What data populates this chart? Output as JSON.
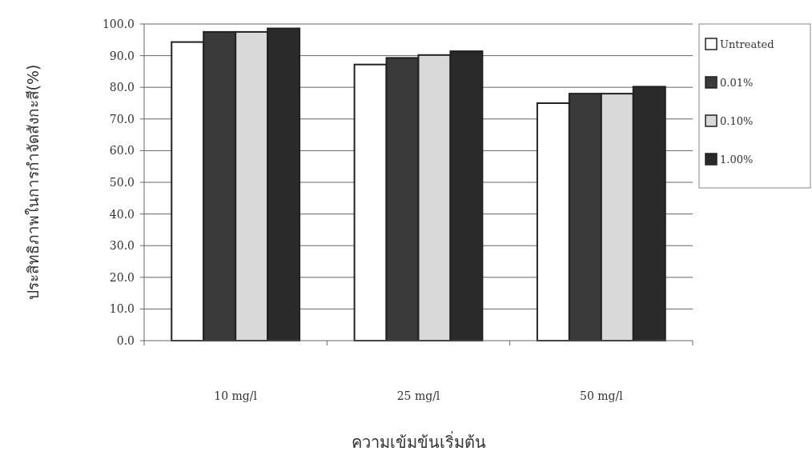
{
  "chart_data": {
    "type": "bar",
    "xlabel": "ความเข้มข้นเริ่มต้น",
    "ylabel": "ประสิทธิภาพในการกำจัดสังกะสี(%)",
    "categories": [
      "10 mg/l",
      "25 mg/l",
      "50 mg/l"
    ],
    "series": [
      {
        "name": "Untreated",
        "color": "#ffffff",
        "values": [
          94.3,
          87.2,
          75.0
        ]
      },
      {
        "name": "0.01%",
        "color": "#3a3a3a",
        "values": [
          97.5,
          89.3,
          78.0
        ]
      },
      {
        "name": "0.10%",
        "color": "#d9d9d9",
        "values": [
          97.5,
          90.2,
          78.0
        ]
      },
      {
        "name": "1.00%",
        "color": "#2a2a2a",
        "values": [
          98.6,
          91.4,
          80.2
        ]
      }
    ],
    "ylim": [
      0,
      100
    ],
    "yticks": [
      {
        "value": 0,
        "label": "0.0"
      },
      {
        "value": 10,
        "label": "10.0"
      },
      {
        "value": 20,
        "label": "20.0"
      },
      {
        "value": 30,
        "label": "30.0"
      },
      {
        "value": 40,
        "label": "40.0"
      },
      {
        "value": 50,
        "label": "50.0"
      },
      {
        "value": 60,
        "label": "60.0"
      },
      {
        "value": 70,
        "label": "70.0"
      },
      {
        "value": 80,
        "label": "80.0"
      },
      {
        "value": 90,
        "label": "90.0"
      },
      {
        "value": 100,
        "label": "100.0"
      }
    ],
    "grid": "y",
    "legend": "right"
  }
}
